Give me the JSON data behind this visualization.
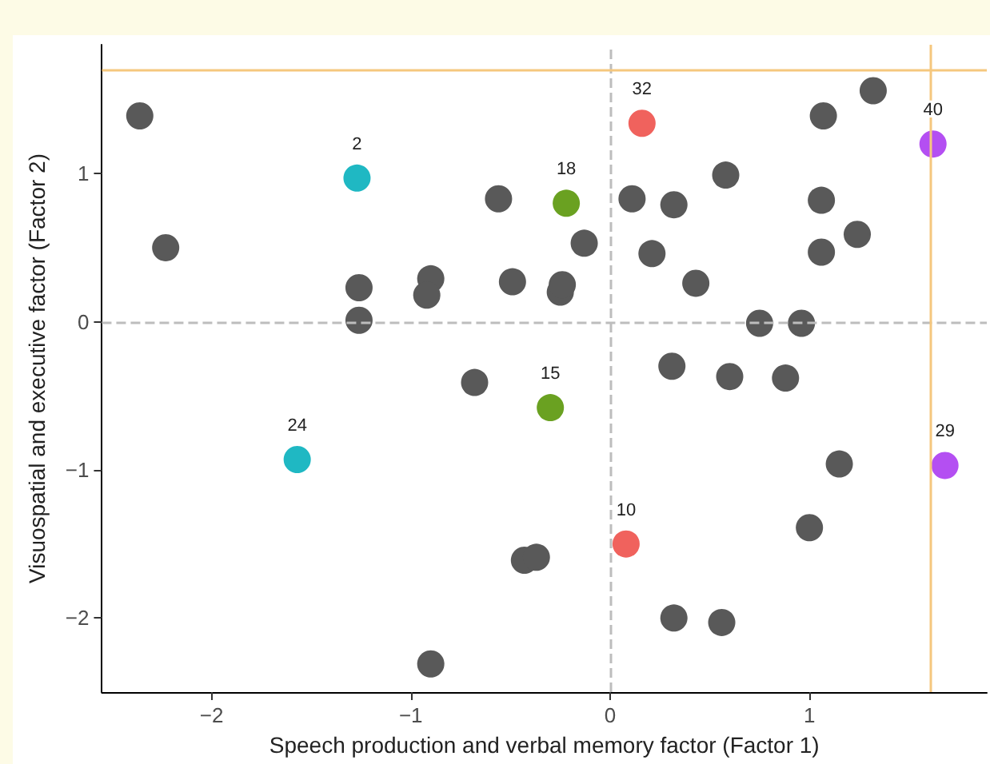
{
  "chart_data": {
    "type": "scatter",
    "xlabel": "Speech production and verbal memory factor (Factor 1)",
    "ylabel": "Visuospatial and executive factor (Factor 2)",
    "xlim": [
      -2.55,
      1.89
    ],
    "ylim": [
      -2.5,
      1.87
    ],
    "xticks": [
      -2,
      -1,
      0,
      1
    ],
    "yticks": [
      -2,
      -1,
      0,
      1
    ],
    "grid": false,
    "marker": "circle",
    "series": [
      {
        "color": "#595959",
        "x": [
          -2.36,
          -2.23,
          -1.26,
          -1.26,
          -0.9,
          -0.92,
          -0.68,
          -0.56,
          -0.49,
          -0.25,
          -0.24,
          -0.13,
          -0.43,
          -0.37,
          -0.9,
          0.11,
          0.32,
          0.21,
          0.58,
          0.43,
          0.31,
          0.6,
          0.32,
          0.56,
          0.75,
          0.96,
          0.88,
          1.07,
          1.32,
          1.06,
          1.06,
          1.24,
          1.15,
          1.0
        ],
        "values": [
          1.39,
          0.5,
          0.23,
          0.01,
          0.29,
          0.18,
          -0.41,
          0.83,
          0.27,
          0.2,
          0.25,
          0.53,
          -1.61,
          -1.59,
          -2.31,
          0.83,
          0.79,
          0.46,
          0.99,
          0.26,
          -0.3,
          -0.37,
          -2.0,
          -2.03,
          -0.01,
          -0.01,
          -0.38,
          1.39,
          1.56,
          0.82,
          0.47,
          0.59,
          -0.96,
          -1.39
        ]
      },
      {
        "color": "#1fb8c3",
        "x": [
          -1.27,
          -1.57
        ],
        "values": [
          0.97,
          -0.93
        ]
      },
      {
        "color": "#6aa121",
        "x": [
          -0.22,
          -0.3
        ],
        "values": [
          0.8,
          -0.58
        ]
      },
      {
        "color": "#f0625d",
        "x": [
          0.16,
          0.08
        ],
        "values": [
          1.34,
          -1.5
        ]
      },
      {
        "color": "#b44ff2",
        "x": [
          1.62,
          1.68
        ],
        "values": [
          1.2,
          -0.97
        ]
      }
    ],
    "annotations": [
      {
        "text": "2",
        "x": -1.27,
        "y": 0.97
      },
      {
        "text": "24",
        "x": -1.57,
        "y": -0.93
      },
      {
        "text": "18",
        "x": -0.22,
        "y": 0.8
      },
      {
        "text": "15",
        "x": -0.3,
        "y": -0.58
      },
      {
        "text": "32",
        "x": 0.16,
        "y": 1.34
      },
      {
        "text": "10",
        "x": 0.08,
        "y": -1.5
      },
      {
        "text": "40",
        "x": 1.62,
        "y": 1.2
      },
      {
        "text": "29",
        "x": 1.68,
        "y": -0.97
      }
    ],
    "ref_lines": [
      {
        "axis": "x",
        "value": 0,
        "color": "#bdbdbd",
        "line_style": "dashed"
      },
      {
        "axis": "y",
        "value": 0,
        "color": "#bdbdbd",
        "line_style": "dashed"
      },
      {
        "axis": "x",
        "value": 1.61,
        "color": "#f5c77e",
        "line_style": "solid"
      },
      {
        "axis": "y",
        "value": 1.7,
        "color": "#f5c77e",
        "line_style": "solid"
      }
    ]
  }
}
